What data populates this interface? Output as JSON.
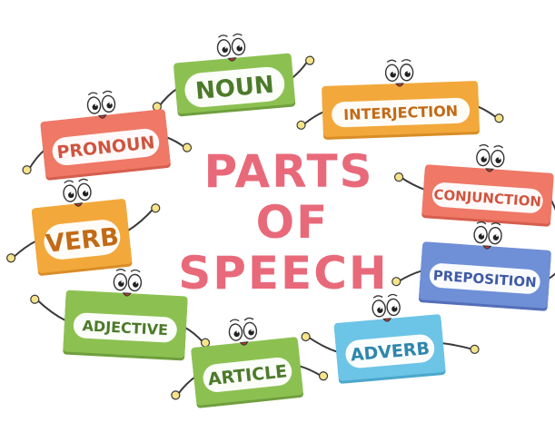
{
  "title": {
    "line1": "PARTS",
    "line2": "OF",
    "line3": "SPEECH",
    "color": "#e86a7a"
  },
  "cards": [
    {
      "id": "noun",
      "label": "NOUN",
      "color": "#8cc152",
      "dark": "#6f9f3e",
      "text": "#4c7a2a"
    },
    {
      "id": "interjection",
      "label": "INTERJECTION",
      "color": "#f3a83b",
      "dark": "#d98d26",
      "text": "#c26a16"
    },
    {
      "id": "pronoun",
      "label": "PRONOUN",
      "color": "#ef7866",
      "dark": "#d65e4d",
      "text": "#d0543f"
    },
    {
      "id": "conjunction",
      "label": "CONJUNCTION",
      "color": "#ef7866",
      "dark": "#d65e4d",
      "text": "#d0543f"
    },
    {
      "id": "verb",
      "label": "VERB",
      "color": "#f3a83b",
      "dark": "#d98d26",
      "text": "#c26a16"
    },
    {
      "id": "preposition",
      "label": "PREPOSITION",
      "color": "#6f8fd6",
      "dark": "#546fb8",
      "text": "#3f5aa6"
    },
    {
      "id": "adjective",
      "label": "ADJECTIVE",
      "color": "#8cc152",
      "dark": "#6f9f3e",
      "text": "#4c7a2a"
    },
    {
      "id": "adverb",
      "label": "ADVERB",
      "color": "#6cc4e6",
      "dark": "#4ba7cc",
      "text": "#2f86ad"
    },
    {
      "id": "article",
      "label": "ARTICLE",
      "color": "#8cc152",
      "dark": "#6f9f3e",
      "text": "#4c7a2a"
    }
  ]
}
